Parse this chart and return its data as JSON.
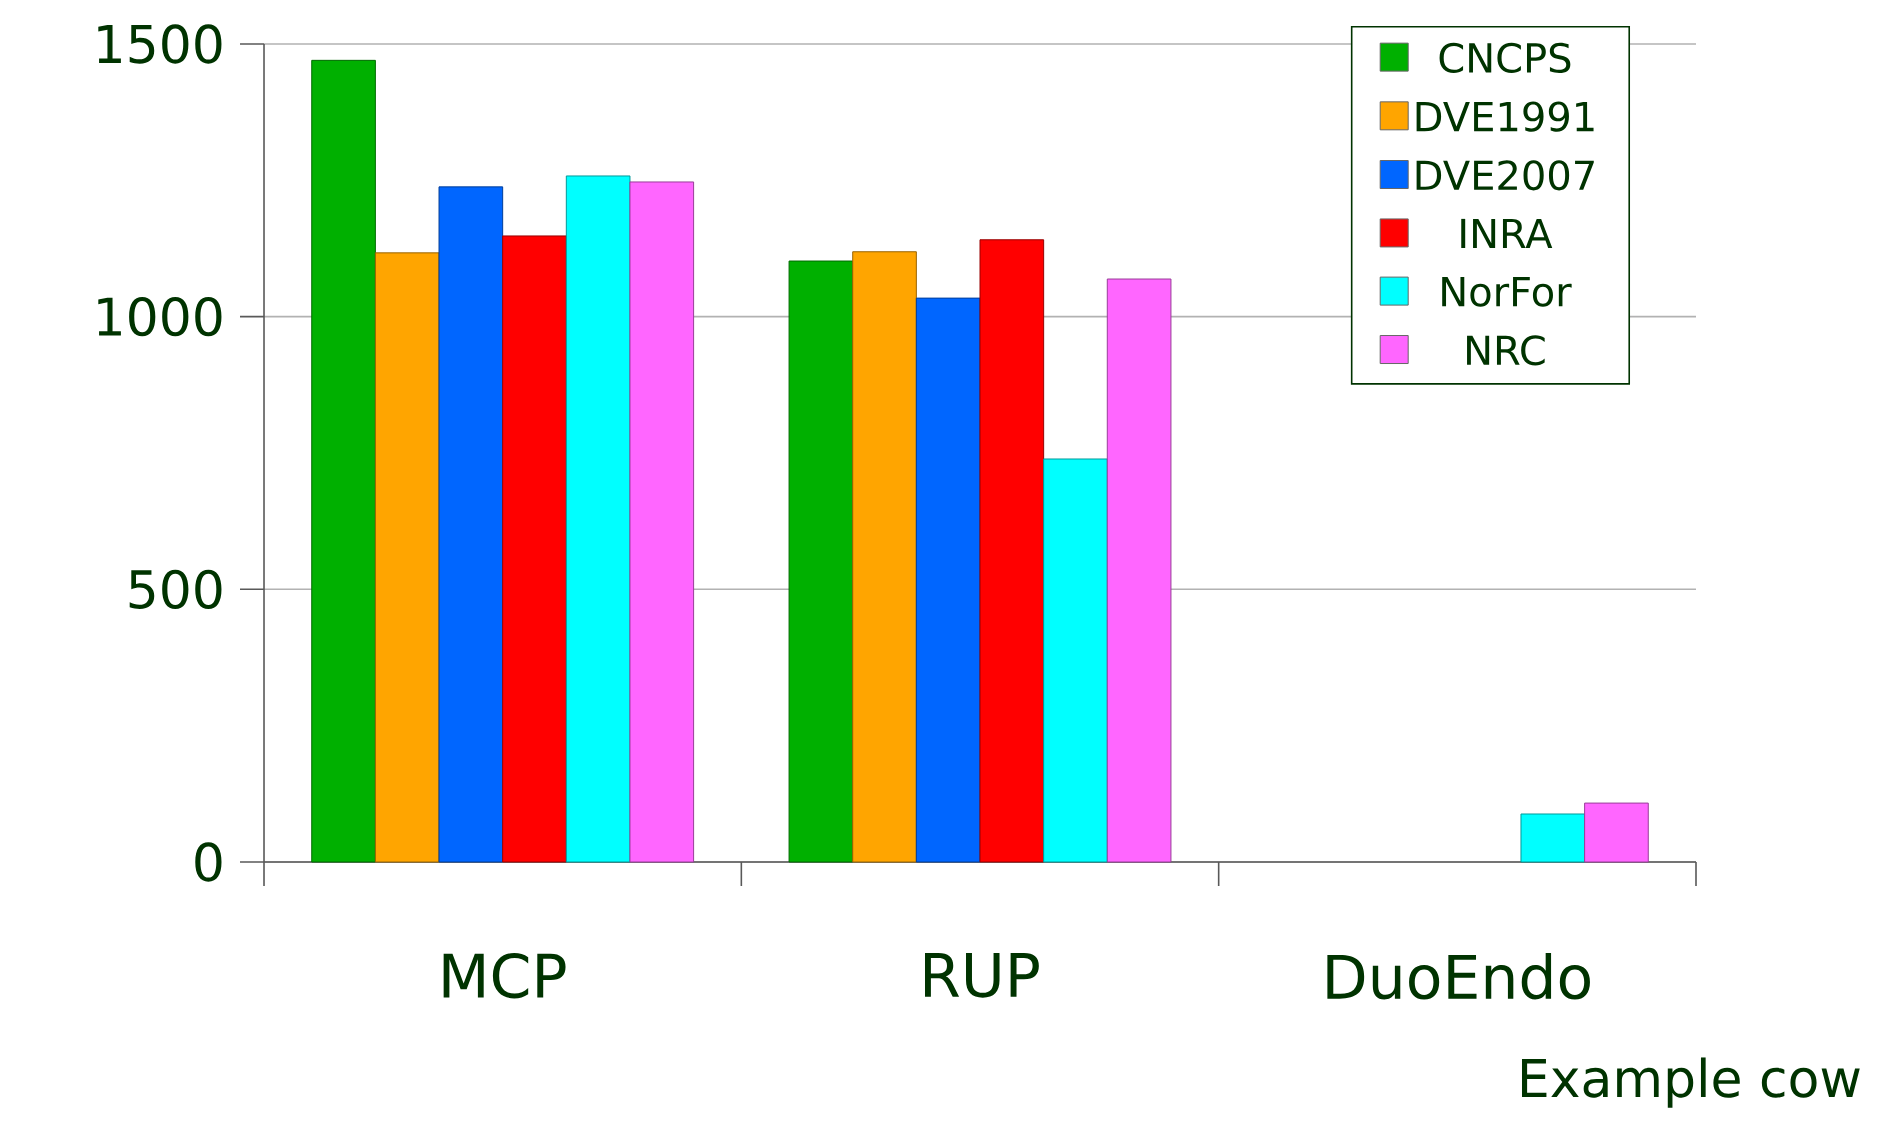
{
  "chart_data": {
    "type": "bar",
    "categories": [
      "MCP",
      "RUP",
      "DuoEndo"
    ],
    "series": [
      {
        "name": "CNCPS",
        "color": "#00b000",
        "values": [
          1470,
          1102,
          null
        ]
      },
      {
        "name": "DVE1991",
        "color": "#ffa500",
        "values": [
          1117,
          1119,
          null
        ]
      },
      {
        "name": "DVE2007",
        "color": "#0066ff",
        "values": [
          1238,
          1034,
          null
        ]
      },
      {
        "name": "INRA",
        "color": "#ff0000",
        "values": [
          1148,
          1141,
          null
        ]
      },
      {
        "name": "NorFor",
        "color": "#00ffff",
        "values": [
          1258,
          739,
          88
        ]
      },
      {
        "name": "NRC",
        "color": "#ff66ff",
        "values": [
          1247,
          1069,
          108
        ]
      }
    ],
    "ylim": [
      0,
      1500
    ],
    "yticks": [
      0,
      500,
      1000,
      1500
    ],
    "grid": "y",
    "legend": "top right",
    "annotations": [
      "Example cow"
    ]
  }
}
